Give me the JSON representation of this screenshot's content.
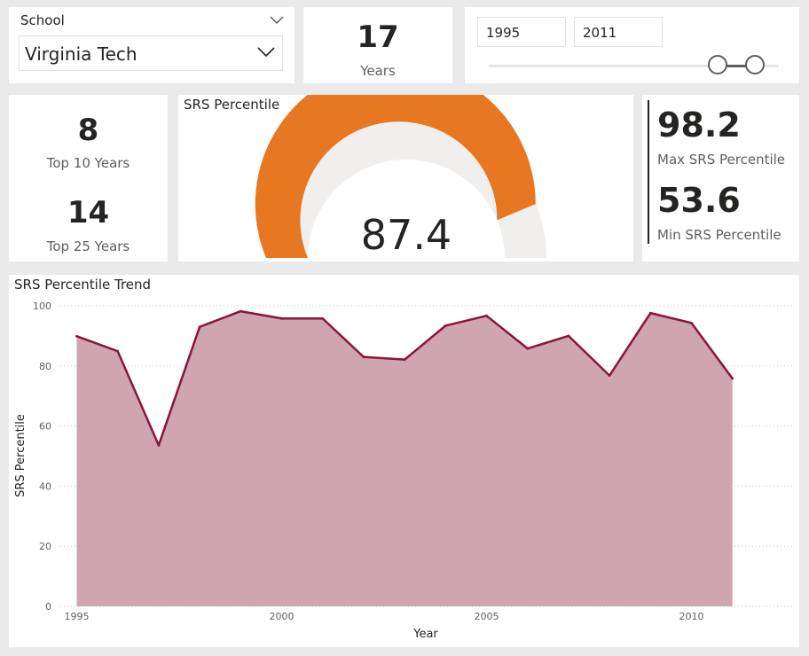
{
  "school_slicer": {
    "header": "School",
    "selected": "Virginia Tech"
  },
  "years_card": {
    "value": "17",
    "label": "Years"
  },
  "year_range": {
    "start": "1995",
    "end": "2011",
    "min": 1995,
    "max": 2011
  },
  "top_counts": {
    "top10_value": "8",
    "top10_label": "Top 10 Years",
    "top25_value": "14",
    "top25_label": "Top 25 Years"
  },
  "gauge": {
    "title": "SRS Percentile",
    "value": 87.4,
    "display": "87.4",
    "min": 0,
    "max": 100,
    "fill_color": "#e87722",
    "track_color": "#f0efee"
  },
  "minmax": {
    "max_value": "98.2",
    "max_label": "Max SRS Percentile",
    "min_value": "53.6",
    "min_label": "Min SRS Percentile"
  },
  "trend": {
    "title": "SRS Percentile Trend"
  },
  "chart_data": {
    "type": "area",
    "title": "SRS Percentile Trend",
    "xlabel": "Year",
    "ylabel": "SRS Percentile",
    "x": [
      1995,
      1996,
      1997,
      1998,
      1999,
      2000,
      2001,
      2002,
      2003,
      2004,
      2005,
      2006,
      2007,
      2008,
      2009,
      2010,
      2011
    ],
    "values": [
      89.9,
      84.9,
      53.6,
      93.0,
      98.2,
      95.8,
      95.8,
      83.0,
      82.1,
      93.4,
      96.7,
      85.8,
      90.0,
      76.8,
      97.6,
      94.3,
      75.8
    ],
    "ylim": [
      0,
      100
    ],
    "yticks": [
      0,
      20,
      40,
      60,
      80,
      100
    ],
    "xticks": [
      1995,
      2000,
      2005,
      2010
    ],
    "xlim": [
      1994.6,
      2012.5
    ],
    "grid": true,
    "line_color": "#8a1538",
    "fill_color": "#cfa5b2"
  }
}
